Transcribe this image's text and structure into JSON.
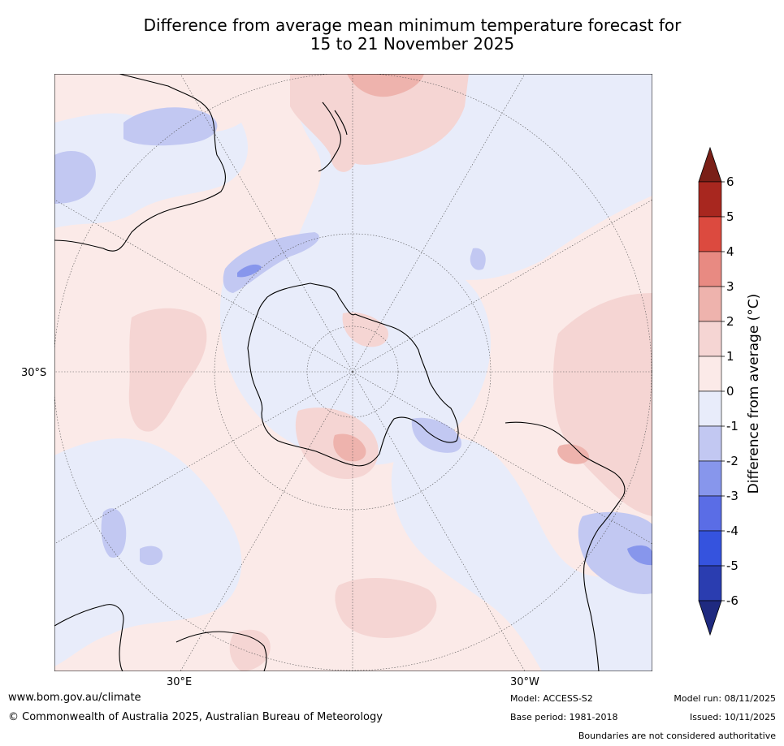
{
  "title": {
    "line1": "Difference from average mean minimum temperature forecast for",
    "line2": "15 to 21 November 2025"
  },
  "map": {
    "lat_label": "30°S",
    "lon_label_east": "30°E",
    "lon_label_west": "30°W"
  },
  "legend": {
    "label": "Difference from average (°C)",
    "ticks": [
      "6",
      "5",
      "4",
      "3",
      "2",
      "1",
      "0",
      "-1",
      "-2",
      "-3",
      "-4",
      "-5",
      "-6"
    ],
    "colors": [
      "#7a1f17",
      "#a8271f",
      "#dc4a3f",
      "#e88a82",
      "#eeb3ad",
      "#f5d5d3",
      "#fbeae8",
      "#e8ecfa",
      "#c2c8f2",
      "#8796ec",
      "#5a6de6",
      "#3553de",
      "#2a3db0",
      "#1f2a80"
    ]
  },
  "footer": {
    "url": "www.bom.gov.au/climate",
    "copyright": "© Commonwealth of Australia 2025, Australian Bureau of Meteorology",
    "model": "Model: ACCESS-S2",
    "base_period": "Base period: 1981-2018",
    "model_run": "Model run: 08/11/2025",
    "issued": "Issued: 10/11/2025",
    "disclaimer": "Boundaries are not considered authoritative"
  }
}
